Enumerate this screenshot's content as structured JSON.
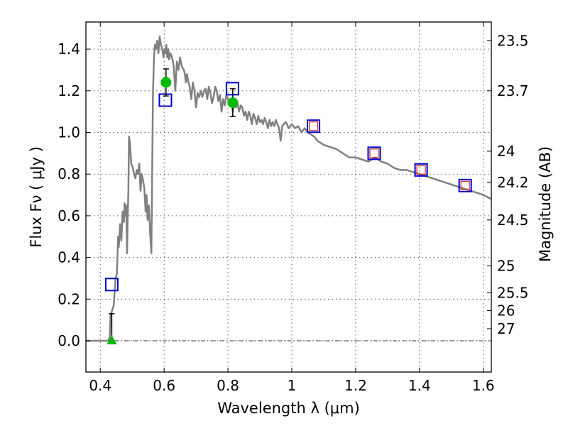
{
  "chart_data": {
    "type": "line",
    "xlabel": "Wavelength  λ (μm)",
    "ylabel": "Flux  Fν  ( μJy )",
    "y2label": "Magnitude (AB)",
    "xlim": [
      0.355,
      1.625
    ],
    "ylim": [
      -0.15,
      1.53
    ],
    "grid": true,
    "xticks": [
      0.4,
      0.6,
      0.8,
      1.0,
      1.2,
      1.4,
      1.6
    ],
    "xtick_labels": [
      "0.4",
      "0.6",
      "0.8",
      "1",
      "1.2",
      "1.4",
      "1.6"
    ],
    "yticks": [
      0.0,
      0.2,
      0.4,
      0.6,
      0.8,
      1.0,
      1.2,
      1.4
    ],
    "ytick_labels": [
      "0.0",
      "0.2",
      "0.4",
      "0.6",
      "0.8",
      "1.0",
      "1.2",
      "1.4"
    ],
    "mag_ticks": [
      {
        "label": "23.5",
        "flux": 1.44
      },
      {
        "label": "23.7",
        "flux": 1.2
      },
      {
        "label": "24",
        "flux": 0.91
      },
      {
        "label": "24.2",
        "flux": 0.76
      },
      {
        "label": "24.5",
        "flux": 0.58
      },
      {
        "label": "25",
        "flux": 0.36
      },
      {
        "label": "25.5",
        "flux": 0.23
      },
      {
        "label": "26",
        "flux": 0.145
      },
      {
        "label": "27",
        "flux": 0.058
      }
    ],
    "model_spectrum": {
      "color": "#808080",
      "x": [
        0.355,
        0.425,
        0.43,
        0.432,
        0.438,
        0.442,
        0.448,
        0.452,
        0.456,
        0.458,
        0.462,
        0.466,
        0.47,
        0.474,
        0.476,
        0.478,
        0.481,
        0.484,
        0.486,
        0.488,
        0.49,
        0.493,
        0.497,
        0.502,
        0.506,
        0.51,
        0.514,
        0.518,
        0.522,
        0.526,
        0.53,
        0.534,
        0.538,
        0.542,
        0.545,
        0.548,
        0.552,
        0.556,
        0.56,
        0.565,
        0.568,
        0.571,
        0.574,
        0.578,
        0.582,
        0.586,
        0.59,
        0.594,
        0.598,
        0.601,
        0.604,
        0.607,
        0.61,
        0.613,
        0.616,
        0.62,
        0.625,
        0.63,
        0.635,
        0.64,
        0.645,
        0.65,
        0.655,
        0.658,
        0.662,
        0.665,
        0.668,
        0.672,
        0.675,
        0.68,
        0.685,
        0.69,
        0.695,
        0.7,
        0.705,
        0.71,
        0.715,
        0.72,
        0.725,
        0.73,
        0.735,
        0.74,
        0.745,
        0.75,
        0.755,
        0.76,
        0.765,
        0.77,
        0.775,
        0.78,
        0.785,
        0.79,
        0.795,
        0.8,
        0.805,
        0.81,
        0.815,
        0.82,
        0.825,
        0.83,
        0.835,
        0.84,
        0.845,
        0.85,
        0.855,
        0.86,
        0.865,
        0.87,
        0.875,
        0.88,
        0.885,
        0.89,
        0.895,
        0.9,
        0.905,
        0.91,
        0.915,
        0.92,
        0.925,
        0.93,
        0.935,
        0.94,
        0.945,
        0.95,
        0.955,
        0.96,
        0.965,
        0.97,
        0.975,
        0.98,
        0.985,
        0.99,
        1.0,
        1.01,
        1.02,
        1.03,
        1.04,
        1.05,
        1.06,
        1.07,
        1.08,
        1.09,
        1.1,
        1.12,
        1.14,
        1.16,
        1.18,
        1.2,
        1.22,
        1.24,
        1.26,
        1.28,
        1.3,
        1.32,
        1.34,
        1.36,
        1.38,
        1.4,
        1.42,
        1.44,
        1.46,
        1.48,
        1.5,
        1.52,
        1.54,
        1.56,
        1.58,
        1.6,
        1.625
      ],
      "y": [
        0.0,
        0.0,
        0.02,
        0.12,
        0.15,
        0.17,
        0.3,
        0.32,
        0.5,
        0.45,
        0.56,
        0.48,
        0.62,
        0.57,
        0.66,
        0.6,
        0.65,
        0.42,
        0.6,
        0.72,
        0.98,
        0.95,
        0.85,
        0.83,
        0.8,
        0.78,
        0.82,
        0.8,
        0.85,
        0.72,
        0.8,
        0.77,
        0.73,
        0.62,
        0.7,
        0.58,
        0.65,
        0.52,
        0.42,
        1.18,
        1.35,
        1.42,
        1.4,
        1.44,
        1.38,
        1.46,
        1.42,
        1.4,
        1.36,
        1.4,
        1.38,
        1.42,
        1.36,
        1.4,
        1.35,
        1.38,
        1.36,
        1.32,
        1.2,
        1.34,
        1.3,
        1.36,
        1.32,
        1.31,
        1.3,
        1.28,
        1.24,
        1.28,
        1.25,
        1.22,
        1.16,
        1.24,
        1.2,
        1.12,
        1.19,
        1.17,
        1.2,
        1.17,
        1.2,
        1.21,
        1.16,
        1.22,
        1.19,
        1.14,
        1.17,
        1.22,
        1.2,
        1.15,
        1.18,
        1.1,
        1.16,
        1.13,
        1.18,
        1.16,
        1.14,
        1.16,
        1.1,
        1.15,
        1.12,
        1.14,
        1.1,
        1.13,
        1.12,
        1.08,
        1.1,
        1.06,
        1.1,
        1.08,
        1.04,
        1.09,
        1.07,
        1.04,
        1.08,
        1.05,
        1.06,
        1.04,
        1.07,
        1.05,
        1.02,
        1.06,
        1.03,
        1.05,
        1.03,
        1.06,
        1.04,
        1.02,
        0.96,
        1.03,
        1.04,
        1.05,
        1.04,
        1.02,
        1.04,
        1.02,
        1.03,
        1.0,
        1.02,
        1.0,
        0.99,
        0.98,
        0.96,
        0.95,
        0.94,
        0.93,
        0.92,
        0.9,
        0.88,
        0.88,
        0.87,
        0.86,
        0.88,
        0.86,
        0.85,
        0.83,
        0.82,
        0.82,
        0.81,
        0.8,
        0.79,
        0.78,
        0.77,
        0.76,
        0.75,
        0.74,
        0.73,
        0.72,
        0.71,
        0.7,
        0.68
      ]
    },
    "model_photometry": {
      "marker": "open-square",
      "color": "#0000cc",
      "x": [
        0.436,
        0.604,
        0.814
      ],
      "y": [
        0.27,
        1.155,
        1.21
      ]
    },
    "overlapping_photometry": {
      "marker": "open-square",
      "outer_color": "#0000cc",
      "inner_color": "#d62728",
      "x": [
        1.068,
        1.258,
        1.405,
        1.543
      ],
      "y": [
        1.03,
        0.9,
        0.82,
        0.745
      ]
    },
    "observed_detections": {
      "marker": "circle",
      "color": "#00bb00",
      "x": [
        0.606,
        0.815
      ],
      "y": [
        1.24,
        1.143
      ],
      "yerr": [
        0.065,
        0.067
      ]
    },
    "observed_upper_limit": {
      "marker": "triangle",
      "color": "#00bb00",
      "x": 0.436,
      "y": 0.0,
      "ymax": 0.13
    },
    "zero_line": {
      "y": 0.0,
      "style": "dash-dot"
    }
  }
}
